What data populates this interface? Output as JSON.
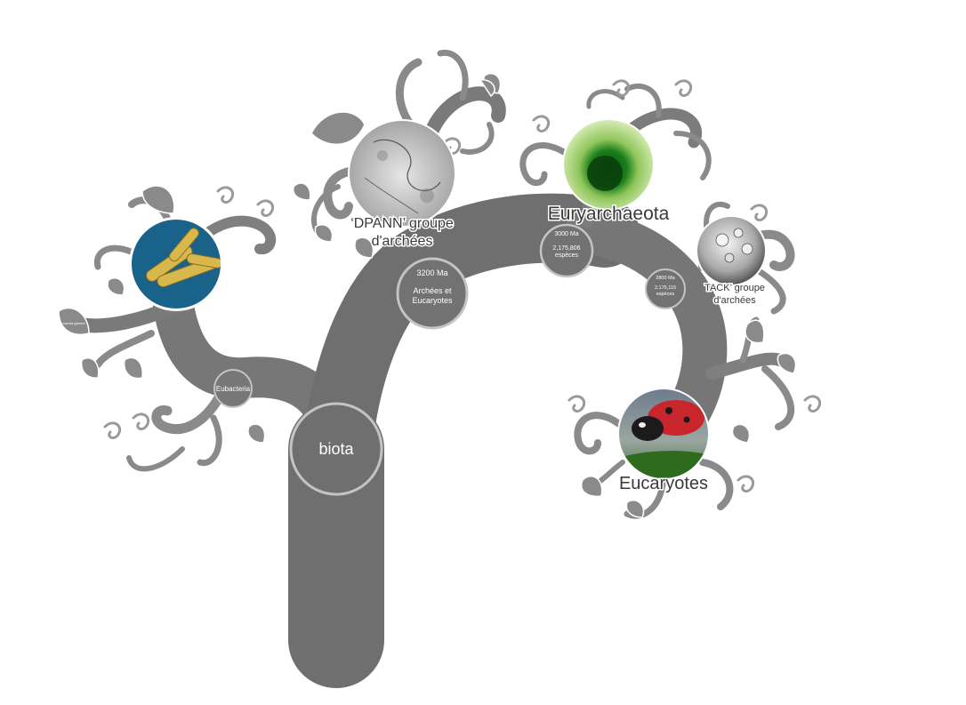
{
  "root": {
    "label": "biota"
  },
  "bacteria": {
    "branch_label": "Eubacteria",
    "leaf_text": "mecha genres"
  },
  "dpann": {
    "title_line1": "‘DPANN’ groupe",
    "title_line2": "d'archées"
  },
  "archaea_euk_node": {
    "age": "3200 Ma",
    "label_line1": "Archées et",
    "label_line2": "Eucaryotes"
  },
  "euryarchaeota": {
    "title": "Euryarchaeota",
    "age": "3000 Ma",
    "species": "2,175,806",
    "species_unit": "espèces"
  },
  "tack_node": {
    "age": "2800 Ma",
    "species": "2,175,115",
    "species_unit": "espèces"
  },
  "tack": {
    "title_line1": "TACK’ groupe",
    "title_line2": "d'archées"
  },
  "eukaryotes": {
    "title": "Eucaryotes"
  },
  "colors": {
    "trunk": "#6f6f6f",
    "limb": "#7d7d7d",
    "twig": "#8d8d8d",
    "leaf": "#8a8a8a",
    "ring": "#bdbdbd",
    "bacteria_bg": "#1f6f98",
    "bacteria_rod": "#d8b84c",
    "algae_green": "#1d8a1d",
    "ladybug_red": "#c9252c"
  }
}
